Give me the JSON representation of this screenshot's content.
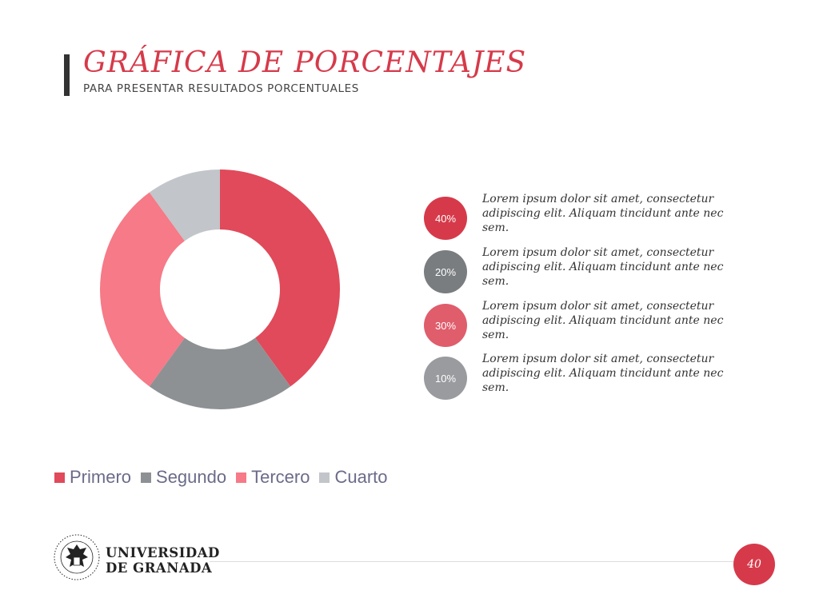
{
  "header": {
    "title": "GRÁFICA DE PORCENTAJES",
    "subtitle": "PARA PRESENTAR RESULTADOS PORCENTUALES"
  },
  "colors": {
    "accent": "#d63a4a",
    "primero": "#e04a5a",
    "segundo": "#8e9194",
    "tercero": "#f67a87",
    "cuarto": "#c2c5c9",
    "circle_40": "#d63a4a",
    "circle_20": "#7a7d80",
    "circle_30": "#e05d6c",
    "circle_10": "#999b9e"
  },
  "chart_data": {
    "type": "pie",
    "donut": true,
    "categories": [
      "Primero",
      "Segundo",
      "Tercero",
      "Cuarto"
    ],
    "values": [
      40,
      20,
      30,
      10
    ],
    "legend_position": "bottom"
  },
  "rows": [
    {
      "pct": "40%",
      "text": "Lorem ipsum dolor sit amet, consectetur adipiscing elit. Aliquam tincidunt ante nec sem."
    },
    {
      "pct": "20%",
      "text": "Lorem ipsum dolor sit amet, consectetur adipiscing elit. Aliquam tincidunt ante nec sem."
    },
    {
      "pct": "30%",
      "text": "Lorem ipsum dolor sit amet, consectetur adipiscing elit. Aliquam tincidunt ante nec sem."
    },
    {
      "pct": "10%",
      "text": "Lorem ipsum dolor sit amet, consectetur adipiscing elit. Aliquam tincidunt ante nec sem."
    }
  ],
  "footer": {
    "university_line1": "UNIVERSIDAD",
    "university_line2": "DE GRANADA",
    "page_number": "40"
  }
}
